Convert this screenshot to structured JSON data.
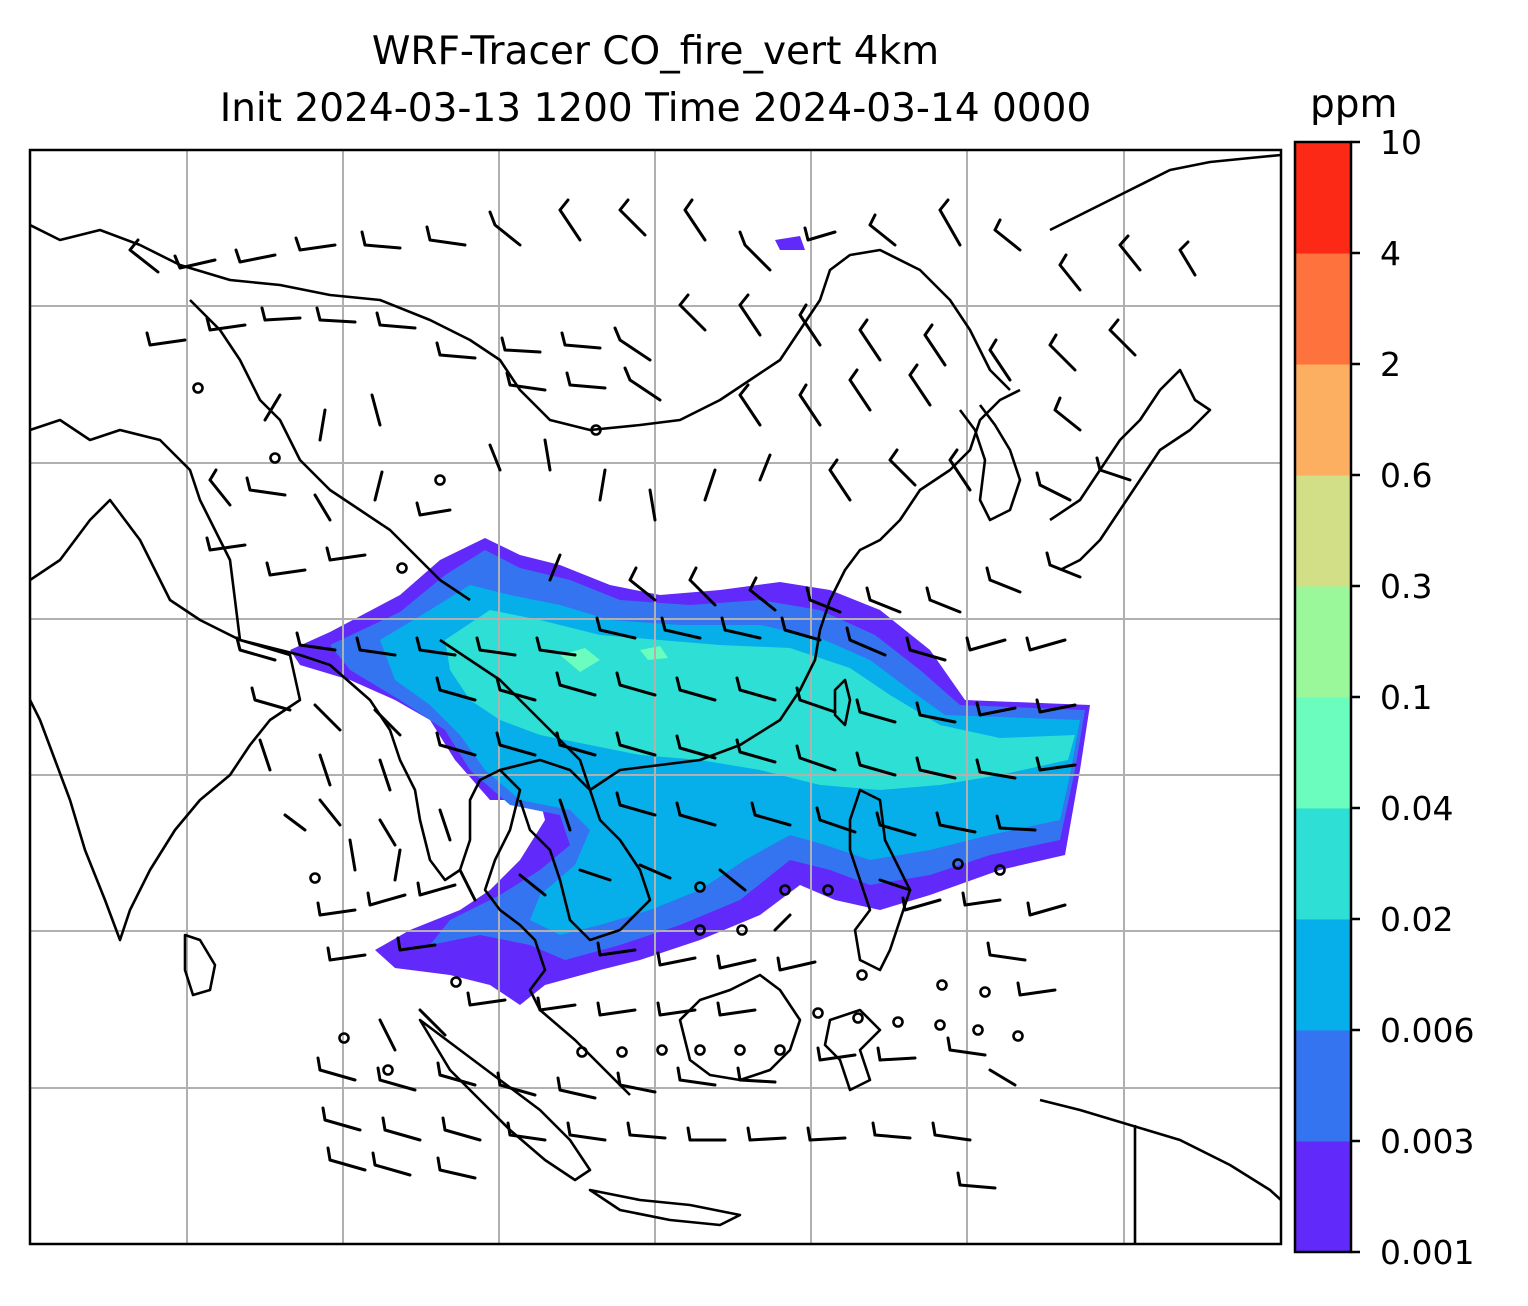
{
  "title": {
    "line1": "WRF-Tracer CO_fire_vert 4km",
    "line2": "Init 2024-03-13 1200 Time 2024-03-14 0000"
  },
  "colorbar": {
    "unit": "ppm",
    "levels": [
      "0.001",
      "0.003",
      "0.006",
      "0.02",
      "0.04",
      "0.1",
      "0.3",
      "0.6",
      "2",
      "4",
      "10"
    ],
    "colors": [
      "#6229fb",
      "#3474f0",
      "#06aeea",
      "#2ddfd4",
      "#6afdbd",
      "#9af89b",
      "#d2df86",
      "#fcaf60",
      "#fe723e",
      "#fc2916"
    ]
  },
  "map": {
    "background": "#ffffff",
    "coastline_color": "#000000",
    "grid_color": "#b0b0b0",
    "wind_barb_color": "#000000"
  }
}
